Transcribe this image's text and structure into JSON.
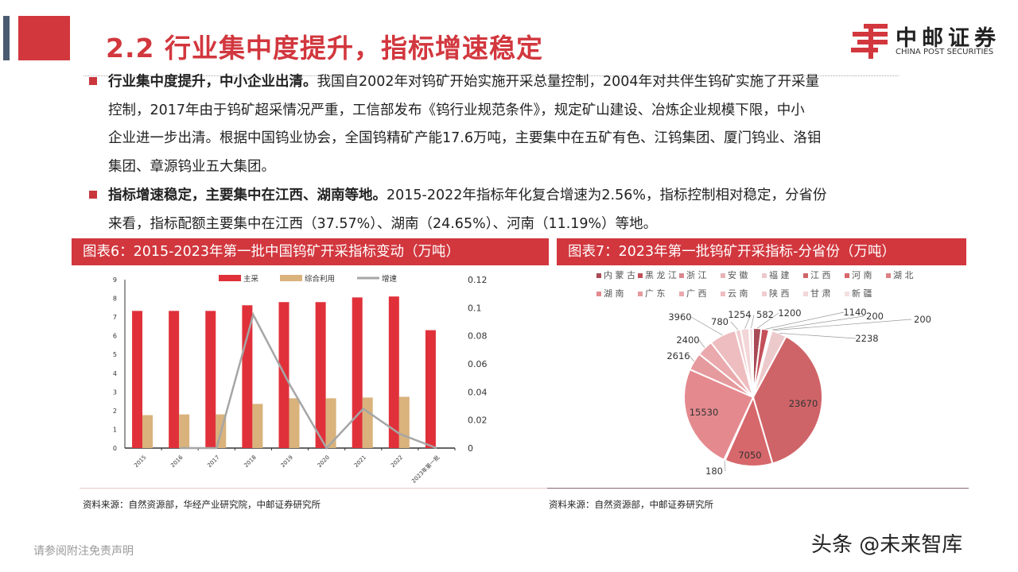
{
  "header": {
    "title": "2.2 行业集中度提升，指标增速稳定",
    "logo_cn": "中邮证券",
    "logo_en": "CHINA POST SECURITIES"
  },
  "bullets": [
    {
      "lead": "行业集中度提升，中小企业出清。",
      "lines": [
        "我国自2002年对钨矿开始实施开采总量控制，2004年对共伴生钨矿实施了开采量",
        "控制，2017年由于钨矿超采情况严重，工信部发布《钨行业规范条件》，规定矿山建设、冶炼企业规模下限，中小",
        "企业进一步出清。根据中国钨业协会，全国钨精矿产能17.6万吨，主要集中在五矿有色、江钨集团、厦门钨业、洛钼",
        "集团、章源钨业五大集团。"
      ]
    },
    {
      "lead": "指标增速稳定，主要集中在江西、湖南等地。",
      "lines": [
        "2015-2022年指标年化复合增速为2.56%，指标控制相对稳定，分省份",
        "来看，指标配额主要集中在江西（37.57%）、湖南（24.65%）、河南（11.19%）等地。"
      ]
    }
  ],
  "figures": [
    {
      "title": "图表6：2015-2023年第一批中国钨矿开采指标变动（万吨）",
      "source": "资料来源：自然资源部，华经产业研究院，中邮证券研究所"
    },
    {
      "title": "图表7：2023年第一批钨矿开采指标-分省份（万吨）",
      "source": "资料来源：自然资源部，中邮证券研究所"
    }
  ],
  "chart_data": [
    {
      "type": "bar",
      "categories": [
        "2015",
        "2016",
        "2017",
        "2018",
        "2019",
        "2020",
        "2021",
        "2022",
        "2023年第一批"
      ],
      "series": [
        {
          "name": "主采",
          "type": "bar",
          "axis": "left",
          "color": "#e0313a",
          "values": [
            7.33,
            7.33,
            7.33,
            7.63,
            7.8,
            7.8,
            8.05,
            8.1,
            6.3
          ]
        },
        {
          "name": "综合利用",
          "type": "bar",
          "axis": "left",
          "color": "#d9b27c",
          "values": [
            1.76,
            1.8,
            1.8,
            2.36,
            2.66,
            2.66,
            2.7,
            2.74,
            null
          ]
        },
        {
          "name": "增速",
          "type": "line",
          "axis": "right",
          "color": "#a6a6a6",
          "values": [
            null,
            0,
            0,
            0.095,
            0.045,
            0,
            0.028,
            0.01,
            0
          ]
        }
      ],
      "ylim": [
        0,
        9
      ],
      "yticks": [
        "0",
        "1",
        "2",
        "3",
        "4",
        "5",
        "6",
        "7",
        "8",
        "9"
      ],
      "y2lim": [
        0,
        0.12
      ],
      "y2ticks": [
        "0",
        "0.02",
        "0.04",
        "0.06",
        "0.08",
        "0.1",
        "0.12"
      ],
      "legend": "top",
      "grid": false
    },
    {
      "type": "pie",
      "labels": [
        "内蒙古",
        "黑龙江",
        "浙江",
        "安徽",
        "福建",
        "江西",
        "河南",
        "湖北",
        "湖南",
        "广东",
        "广西",
        "云南",
        "陕西",
        "甘肃",
        "新疆"
      ],
      "values": [
        1200,
        1140,
        200,
        200,
        2238,
        23670,
        7050,
        180,
        15530,
        2616,
        2400,
        3960,
        780,
        1254,
        582
      ],
      "colors": [
        "#a84a55",
        "#c4505a",
        "#d9868c",
        "#e6b3b6",
        "#ecc9cb",
        "#cf6468",
        "#d6676b",
        "#dd8085",
        "#e48a8f",
        "#e59a9e",
        "#eaa9ad",
        "#eebdc0",
        "#f0cdd0",
        "#f3d6d8",
        "#f5e0e1"
      ],
      "legend": "top"
    }
  ],
  "footer": {
    "disclaimer": "请参阅附注免责声明",
    "watermark": "头条 @未来智库"
  }
}
